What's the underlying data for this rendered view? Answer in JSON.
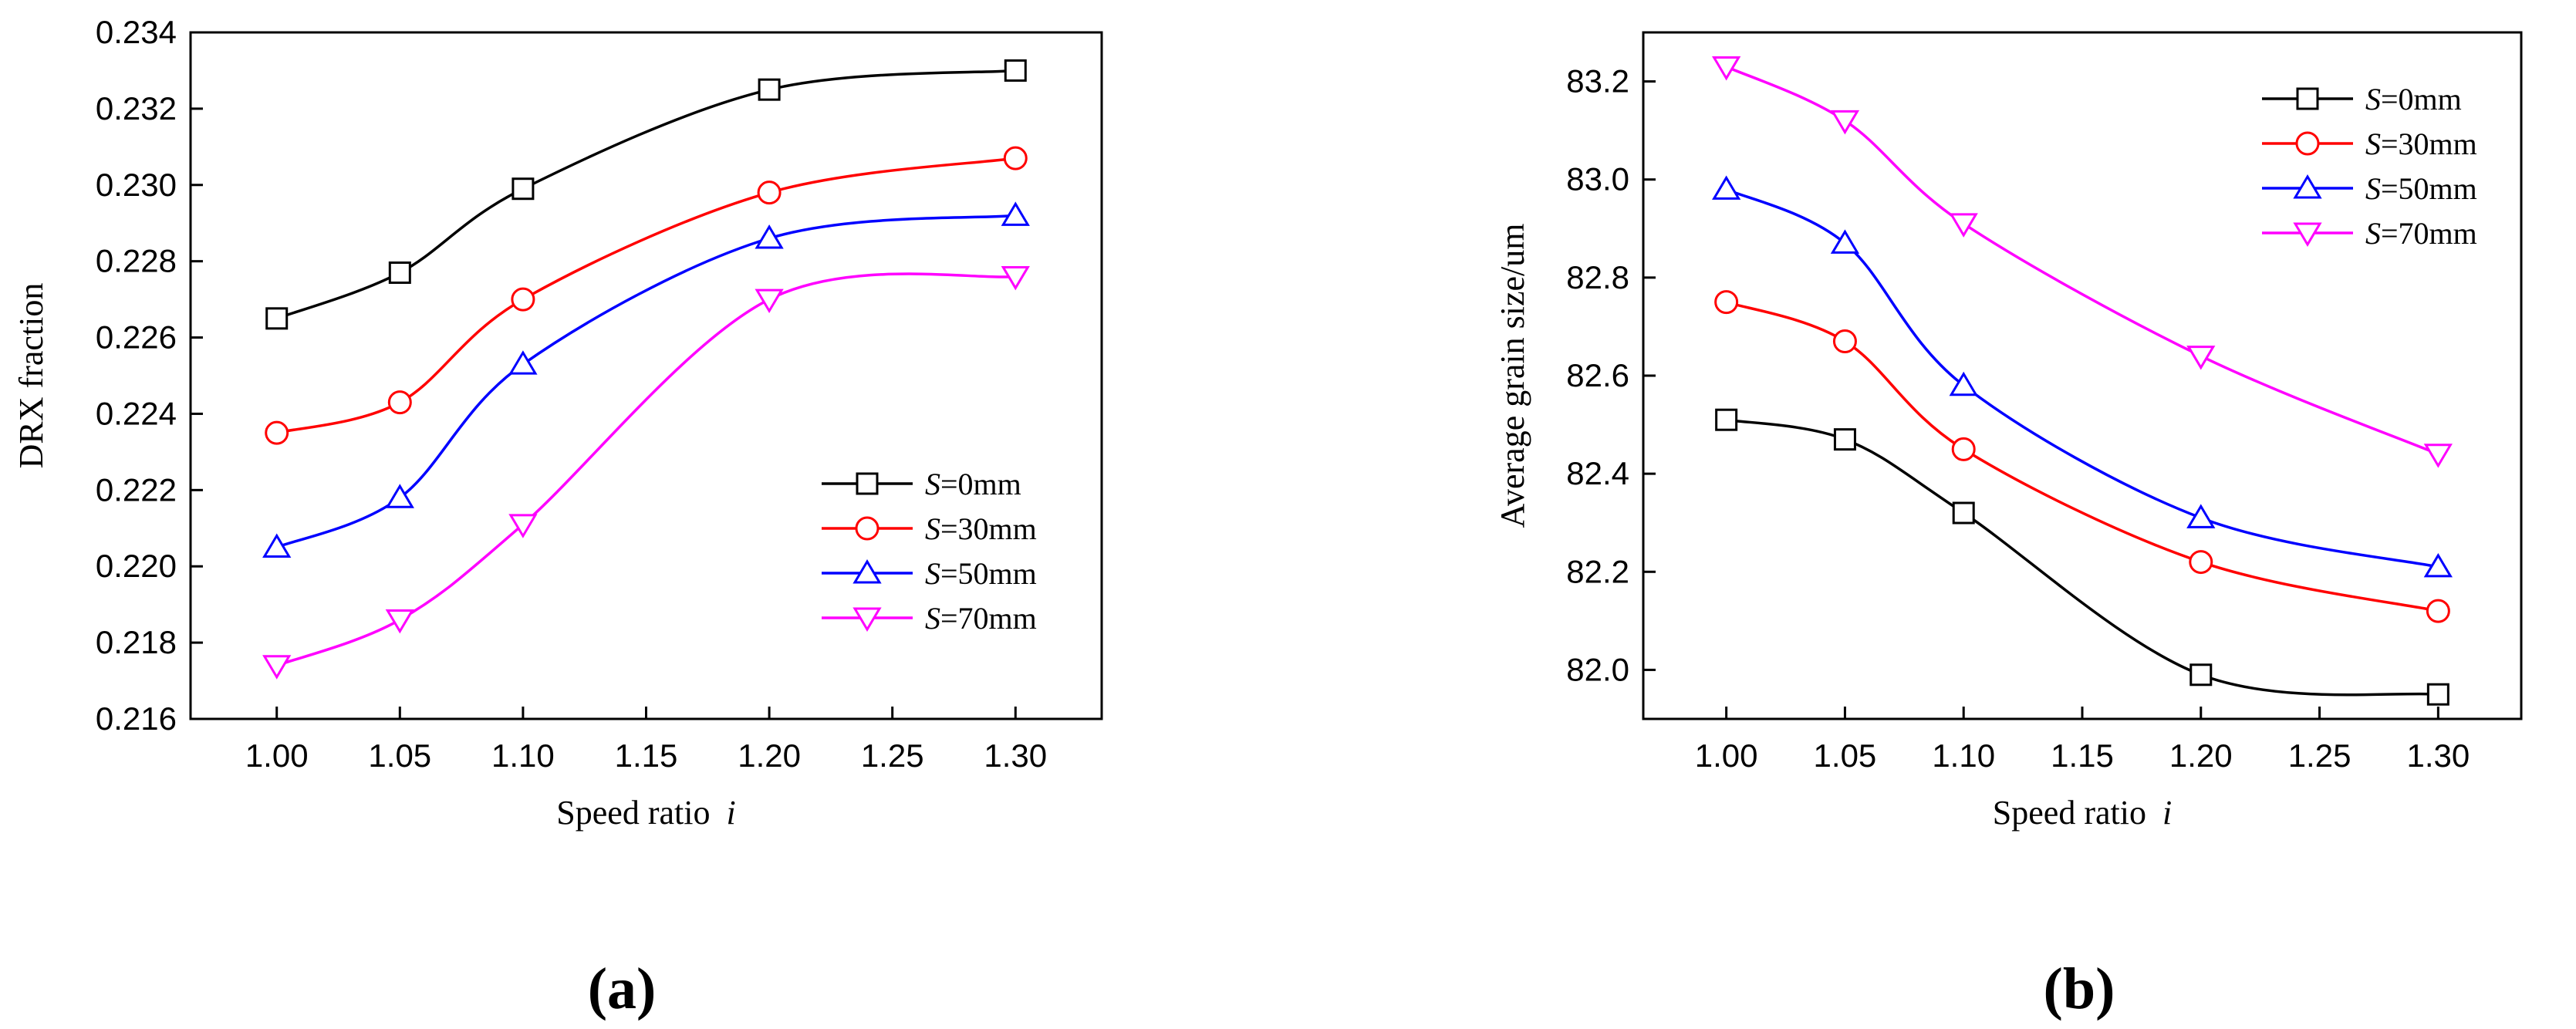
{
  "chart_data": [
    {
      "type": "line",
      "panel_label": "(a)",
      "panel_letter": "a",
      "xlabel": "Speed ratio ",
      "xlabel_var": "i",
      "ylabel": "DRX fraction",
      "xlim": [
        0.965,
        1.335
      ],
      "ylim": [
        0.216,
        0.234
      ],
      "xticks": [
        "1.00",
        "1.05",
        "1.10",
        "1.15",
        "1.20",
        "1.25",
        "1.30"
      ],
      "yticks": [
        "0.216",
        "0.218",
        "0.220",
        "0.222",
        "0.224",
        "0.226",
        "0.228",
        "0.230",
        "0.232",
        "0.234"
      ],
      "x": [
        1.0,
        1.05,
        1.1,
        1.2,
        1.3
      ],
      "legend_position": "lower-right",
      "series": [
        {
          "name_var": "S",
          "name": "=0mm",
          "color": "#000000",
          "marker": "square",
          "values": [
            0.2265,
            0.2277,
            0.2299,
            0.2325,
            0.233
          ]
        },
        {
          "name_var": "S",
          "name": "=30mm",
          "color": "#ff0000",
          "marker": "circle",
          "values": [
            0.2235,
            0.2243,
            0.227,
            0.2298,
            0.2307
          ]
        },
        {
          "name_var": "S",
          "name": "=50mm",
          "color": "#0000ff",
          "marker": "triangle-up",
          "values": [
            0.2205,
            0.2218,
            0.2253,
            0.2286,
            0.2292
          ]
        },
        {
          "name_var": "S",
          "name": "=70mm",
          "color": "#ff00ff",
          "marker": "triangle-down",
          "values": [
            0.2174,
            0.2186,
            0.2211,
            0.227,
            0.2276
          ]
        }
      ]
    },
    {
      "type": "line",
      "panel_label": "(b)",
      "panel_letter": "b",
      "xlabel": "Speed ratio ",
      "xlabel_var": "i",
      "ylabel": "Average grain size/um",
      "xlim": [
        0.965,
        1.335
      ],
      "ylim": [
        81.9,
        83.3
      ],
      "xticks": [
        "1.00",
        "1.05",
        "1.10",
        "1.15",
        "1.20",
        "1.25",
        "1.30"
      ],
      "yticks": [
        "82.0",
        "82.2",
        "82.4",
        "82.6",
        "82.8",
        "83.0",
        "83.2"
      ],
      "x": [
        1.0,
        1.05,
        1.1,
        1.2,
        1.3
      ],
      "legend_position": "top-right",
      "series": [
        {
          "name_var": "S",
          "name": "=0mm",
          "color": "#000000",
          "marker": "square",
          "values": [
            82.51,
            82.47,
            82.32,
            81.99,
            81.95
          ]
        },
        {
          "name_var": "S",
          "name": "=30mm",
          "color": "#ff0000",
          "marker": "circle",
          "values": [
            82.75,
            82.67,
            82.45,
            82.22,
            82.12
          ]
        },
        {
          "name_var": "S",
          "name": "=50mm",
          "color": "#0000ff",
          "marker": "triangle-up",
          "values": [
            82.98,
            82.87,
            82.58,
            82.31,
            82.21
          ]
        },
        {
          "name_var": "S",
          "name": "=70mm",
          "color": "#ff00ff",
          "marker": "triangle-down",
          "values": [
            83.23,
            83.12,
            82.91,
            82.64,
            82.44
          ]
        }
      ]
    }
  ]
}
